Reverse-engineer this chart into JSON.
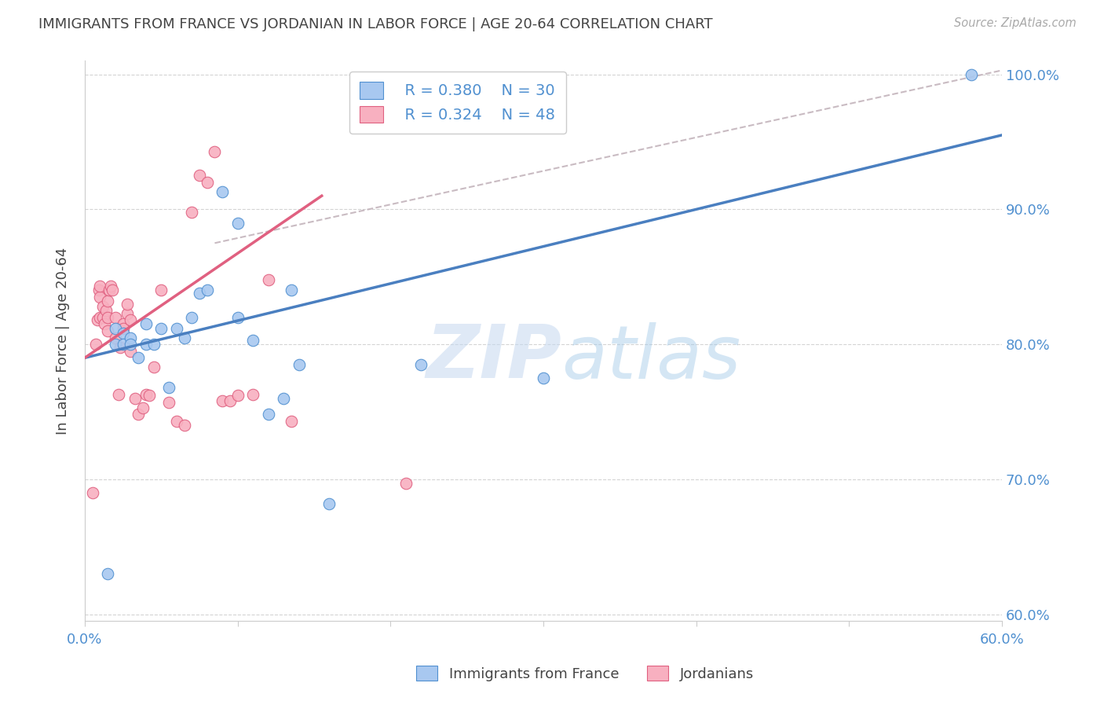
{
  "title": "IMMIGRANTS FROM FRANCE VS JORDANIAN IN LABOR FORCE | AGE 20-64 CORRELATION CHART",
  "source": "Source: ZipAtlas.com",
  "ylabel_label": "In Labor Force | Age 20-64",
  "xlim": [
    0.0,
    0.6
  ],
  "ylim": [
    0.595,
    1.01
  ],
  "ytick_positions": [
    0.6,
    0.7,
    0.8,
    0.9,
    1.0
  ],
  "ytick_labels": [
    "60.0%",
    "70.0%",
    "80.0%",
    "90.0%",
    "100.0%"
  ],
  "xtick_positions": [
    0.0,
    0.1,
    0.2,
    0.3,
    0.4,
    0.5,
    0.6
  ],
  "xtick_labels": [
    "0.0%",
    "",
    "",
    "",
    "",
    "",
    "60.0%"
  ],
  "legend_blue_r": "R = 0.380",
  "legend_blue_n": "N = 30",
  "legend_pink_r": "R = 0.324",
  "legend_pink_n": "N = 48",
  "blue_fill_color": "#a8c8f0",
  "blue_edge_color": "#5090d0",
  "pink_fill_color": "#f8b0c0",
  "pink_edge_color": "#e06080",
  "blue_line_color": "#4a7fc0",
  "pink_line_color": "#e06080",
  "dashed_line_color": "#c0b0b8",
  "watermark_zip": "ZIP",
  "watermark_atlas": "atlas",
  "blue_line_x": [
    0.0,
    0.6
  ],
  "blue_line_y": [
    0.79,
    0.955
  ],
  "pink_line_x": [
    0.0,
    0.155
  ],
  "pink_line_y": [
    0.79,
    0.91
  ],
  "dash_line_x": [
    0.085,
    0.6
  ],
  "dash_line_y": [
    0.875,
    1.003
  ],
  "blue_scatter_x": [
    0.015,
    0.02,
    0.02,
    0.025,
    0.025,
    0.03,
    0.03,
    0.035,
    0.04,
    0.04,
    0.045,
    0.05,
    0.055,
    0.06,
    0.065,
    0.07,
    0.075,
    0.08,
    0.09,
    0.1,
    0.1,
    0.11,
    0.12,
    0.13,
    0.135,
    0.14,
    0.16,
    0.22,
    0.3,
    0.58
  ],
  "blue_scatter_y": [
    0.63,
    0.8,
    0.812,
    0.808,
    0.8,
    0.805,
    0.8,
    0.79,
    0.815,
    0.8,
    0.8,
    0.812,
    0.768,
    0.812,
    0.805,
    0.82,
    0.838,
    0.84,
    0.913,
    0.89,
    0.82,
    0.803,
    0.748,
    0.76,
    0.84,
    0.785,
    0.682,
    0.785,
    0.775,
    1.0
  ],
  "pink_scatter_x": [
    0.005,
    0.007,
    0.008,
    0.009,
    0.01,
    0.01,
    0.01,
    0.012,
    0.012,
    0.013,
    0.014,
    0.015,
    0.015,
    0.015,
    0.016,
    0.017,
    0.018,
    0.02,
    0.02,
    0.022,
    0.023,
    0.025,
    0.025,
    0.028,
    0.028,
    0.03,
    0.03,
    0.033,
    0.035,
    0.038,
    0.04,
    0.042,
    0.045,
    0.05,
    0.055,
    0.06,
    0.065,
    0.07,
    0.075,
    0.08,
    0.085,
    0.09,
    0.095,
    0.1,
    0.11,
    0.12,
    0.135,
    0.21
  ],
  "pink_scatter_y": [
    0.69,
    0.8,
    0.818,
    0.84,
    0.82,
    0.835,
    0.843,
    0.82,
    0.828,
    0.815,
    0.825,
    0.81,
    0.82,
    0.832,
    0.84,
    0.843,
    0.84,
    0.805,
    0.82,
    0.763,
    0.798,
    0.815,
    0.812,
    0.823,
    0.83,
    0.818,
    0.795,
    0.76,
    0.748,
    0.753,
    0.763,
    0.762,
    0.783,
    0.84,
    0.757,
    0.743,
    0.74,
    0.898,
    0.925,
    0.92,
    0.943,
    0.758,
    0.758,
    0.762,
    0.763,
    0.848,
    0.743,
    0.697
  ],
  "title_color": "#444444",
  "axis_color": "#5090d0",
  "grid_color": "#d0d0d0",
  "background_color": "#ffffff"
}
